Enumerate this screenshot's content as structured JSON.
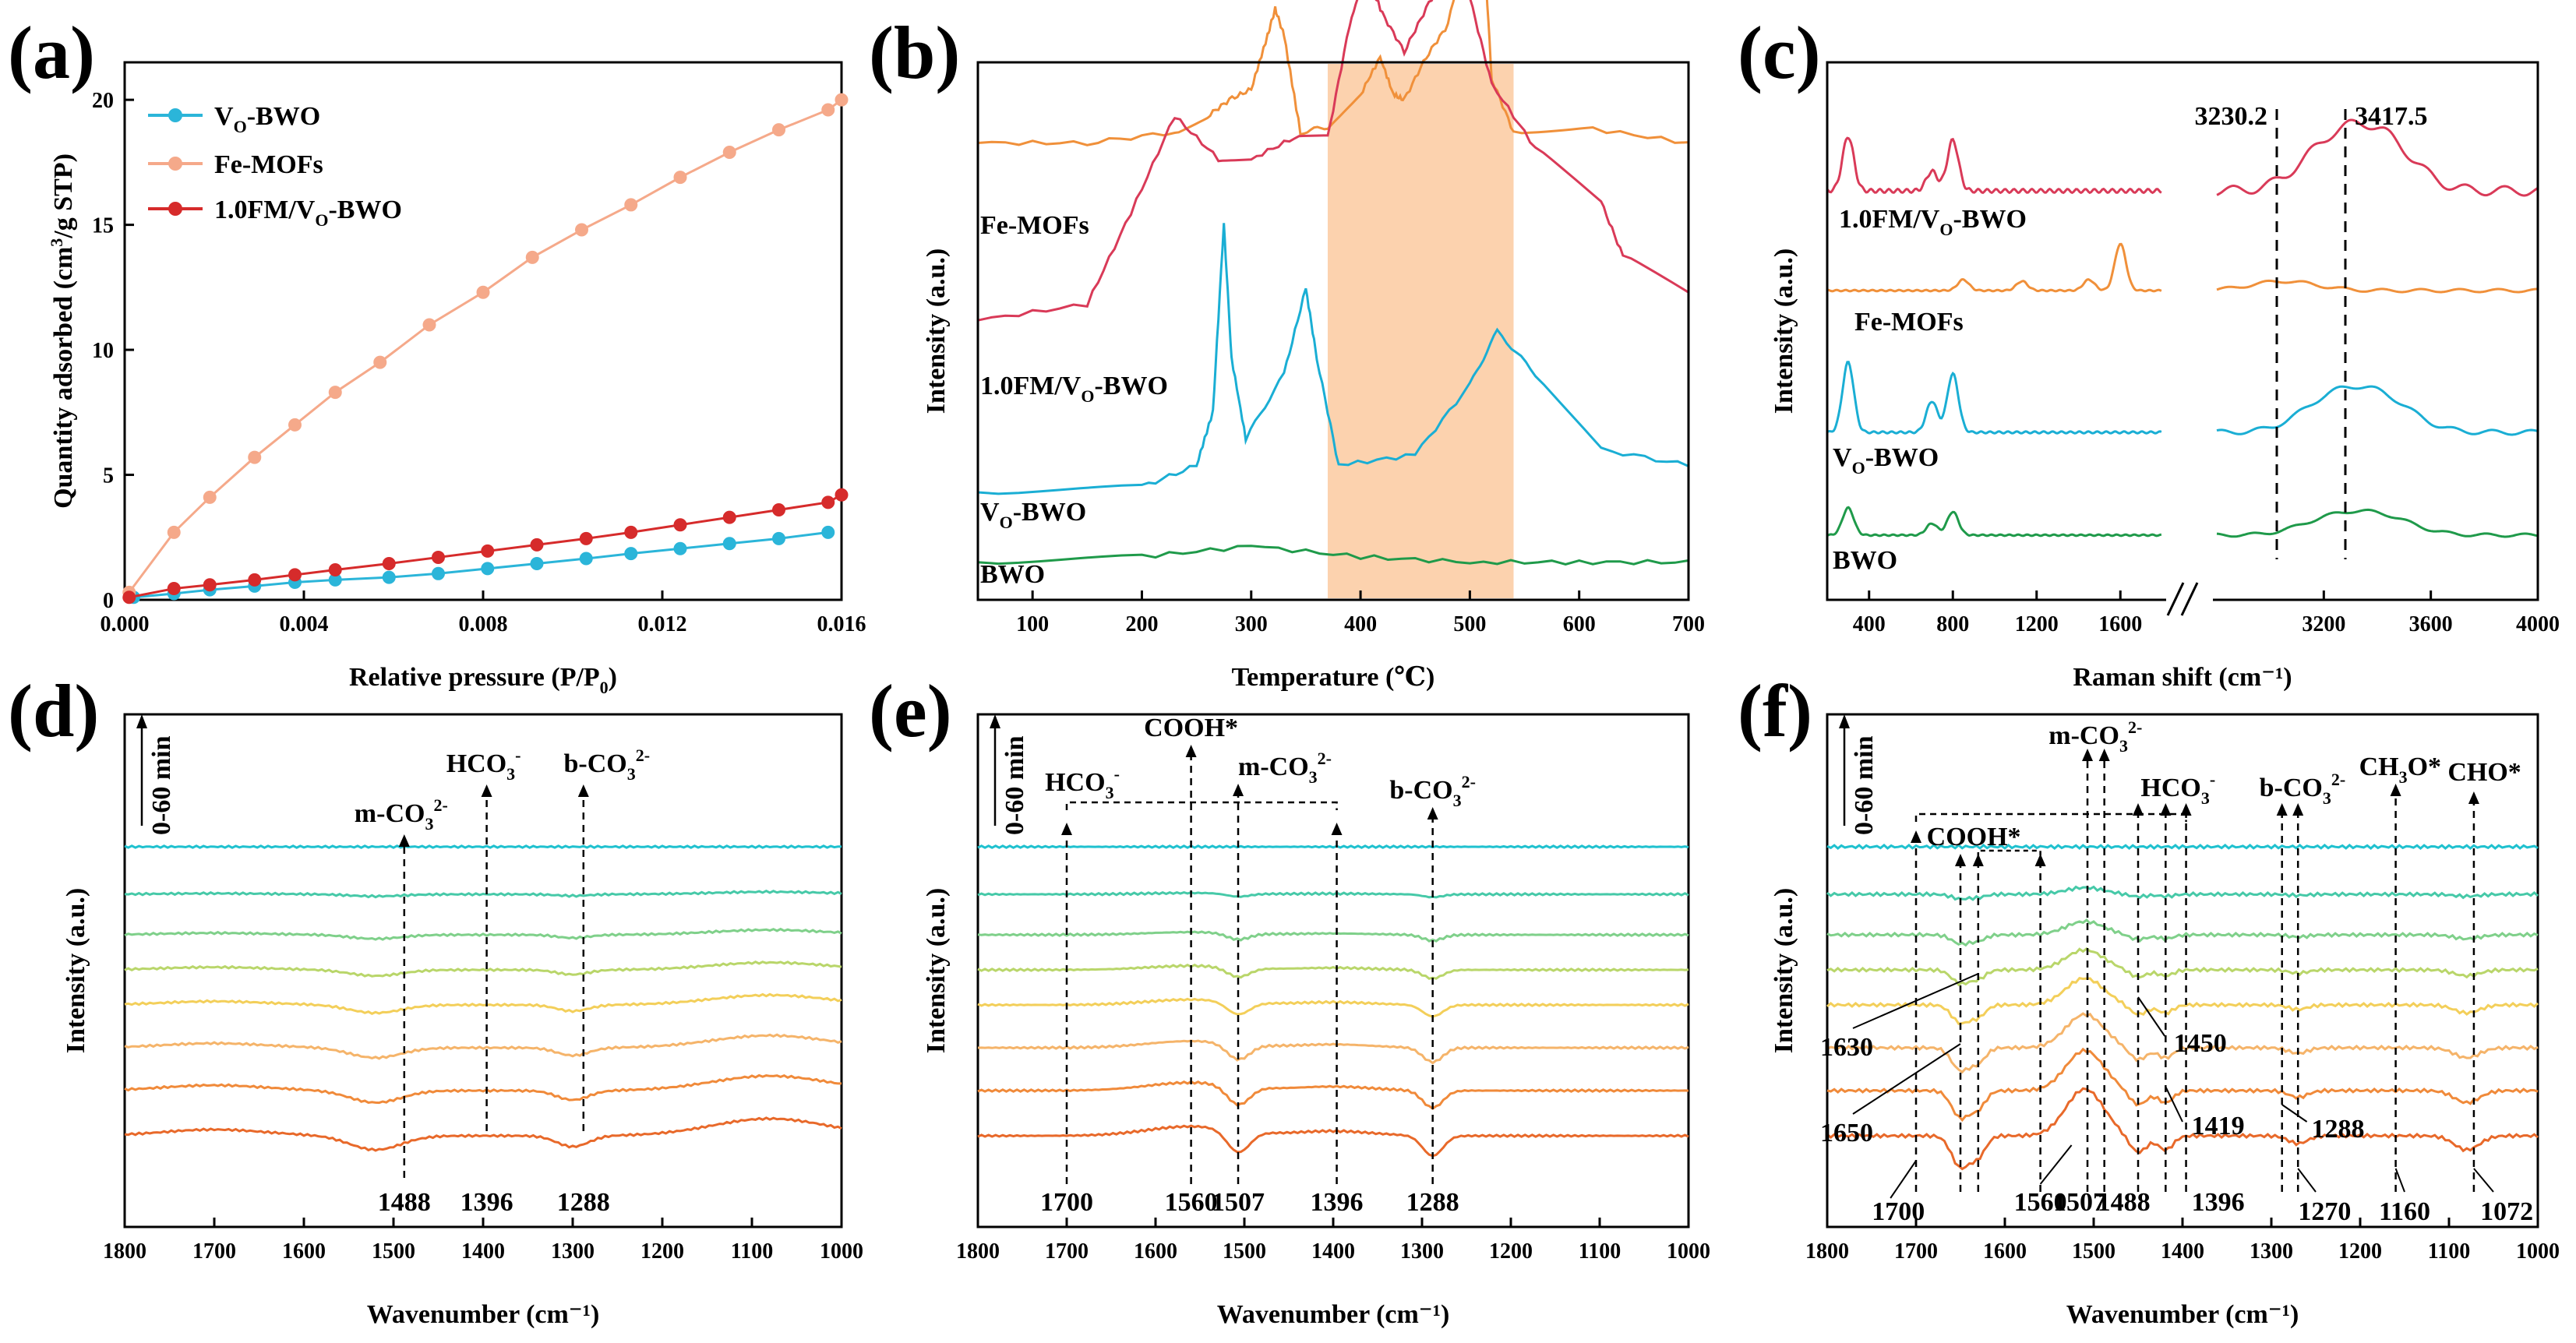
{
  "panels": [
    {
      "id": "a",
      "label": "(a)"
    },
    {
      "id": "b",
      "label": "(b)"
    },
    {
      "id": "c",
      "label": "(c)"
    },
    {
      "id": "d",
      "label": "(d)"
    },
    {
      "id": "e",
      "label": "(e)"
    },
    {
      "id": "f",
      "label": "(f)"
    }
  ],
  "chart_data": [
    {
      "panel": "a",
      "type": "line",
      "title": "",
      "xlabel": "Relative pressure (P/P0)",
      "ylabel": "Quantity adsorbed (cm3/g STP)",
      "xlim": [
        0.0,
        0.016
      ],
      "ylim": [
        0,
        21.5
      ],
      "xticks": [
        "0.000",
        "0.004",
        "0.008",
        "0.012",
        "0.016"
      ],
      "yticks": [
        "0",
        "5",
        "10",
        "15",
        "20"
      ],
      "legend_position": "top-left",
      "series": [
        {
          "name": "VO-BWO",
          "color": "#2bb5d9",
          "x": [
            0.0002,
            0.0011,
            0.0019,
            0.0029,
            0.0038,
            0.0047,
            0.0059,
            0.007,
            0.0081,
            0.0092,
            0.0103,
            0.0113,
            0.0124,
            0.0135,
            0.0146,
            0.0157
          ],
          "y": [
            0.1,
            0.25,
            0.4,
            0.55,
            0.7,
            0.8,
            0.9,
            1.05,
            1.25,
            1.45,
            1.65,
            1.85,
            2.05,
            2.25,
            2.45,
            2.7
          ]
        },
        {
          "name": "Fe-MOFs",
          "color": "#f5a98a",
          "x": [
            0.0001,
            0.0011,
            0.0019,
            0.0029,
            0.0038,
            0.0047,
            0.0057,
            0.0068,
            0.008,
            0.0091,
            0.0102,
            0.0113,
            0.0124,
            0.0135,
            0.0146,
            0.0157,
            0.016
          ],
          "y": [
            0.3,
            2.7,
            4.1,
            5.7,
            7.0,
            8.3,
            9.5,
            11.0,
            12.3,
            13.7,
            14.8,
            15.8,
            16.9,
            17.9,
            18.8,
            19.6,
            20.0
          ]
        },
        {
          "name": "1.0FM/VO-BWO",
          "color": "#d62b2b",
          "x": [
            0.0001,
            0.0011,
            0.0019,
            0.0029,
            0.0038,
            0.0047,
            0.0059,
            0.007,
            0.0081,
            0.0092,
            0.0103,
            0.0113,
            0.0124,
            0.0135,
            0.0146,
            0.0157,
            0.016
          ],
          "y": [
            0.1,
            0.45,
            0.6,
            0.8,
            1.0,
            1.2,
            1.45,
            1.7,
            1.95,
            2.2,
            2.45,
            2.7,
            3.0,
            3.3,
            3.6,
            3.9,
            4.2
          ]
        }
      ]
    },
    {
      "panel": "b",
      "type": "line",
      "xlabel": "Temperature (℃)",
      "ylabel": "Intensity (a.u.)",
      "xlim": [
        50,
        700
      ],
      "xticks": [
        "100",
        "200",
        "300",
        "400",
        "500",
        "600",
        "700"
      ],
      "highlight_range": [
        370,
        540
      ],
      "highlight_color": "#fcd2ae",
      "series": [
        {
          "name": "Fe-MOFs",
          "color": "#f0903a",
          "label": "Fe-MOFs",
          "baseline": 0.85,
          "x": [
            50,
            150,
            230,
            260,
            280,
            300,
            315,
            322,
            330,
            345,
            370,
            400,
            418,
            430,
            440,
            460,
            480,
            500,
            505,
            512,
            520,
            540,
            600,
            700
          ],
          "y": [
            0,
            0,
            0.02,
            0.05,
            0.08,
            0.1,
            0.2,
            0.25,
            0.2,
            0.02,
            0.03,
            0.09,
            0.16,
            0.09,
            0.08,
            0.16,
            0.22,
            0.4,
            0.47,
            0.4,
            0.12,
            0.02,
            0.03,
            0.0
          ]
        },
        {
          "name": "1.0FM/VO-BWO",
          "color": "#d93a58",
          "label": "1.0FM/VO-BWO",
          "baseline": 0.52,
          "x": [
            50,
            150,
            190,
            230,
            270,
            300,
            340,
            370,
            390,
            405,
            420,
            440,
            460,
            480,
            500,
            520,
            560,
            620,
            640,
            700
          ],
          "y": [
            0,
            0.03,
            0.2,
            0.38,
            0.3,
            0.3,
            0.34,
            0.34,
            0.55,
            0.65,
            0.57,
            0.5,
            0.58,
            0.65,
            0.6,
            0.44,
            0.32,
            0.22,
            0.12,
            0.05
          ]
        },
        {
          "name": "VO-BWO",
          "color": "#1aaed4",
          "label": "VO-BWO",
          "baseline": 0.2,
          "x": [
            50,
            200,
            250,
            265,
            275,
            282,
            295,
            330,
            350,
            360,
            380,
            450,
            500,
            525,
            560,
            620,
            700
          ],
          "y": [
            0,
            0.01,
            0.05,
            0.15,
            0.5,
            0.25,
            0.1,
            0.22,
            0.38,
            0.25,
            0.05,
            0.07,
            0.2,
            0.3,
            0.22,
            0.08,
            0.05
          ]
        },
        {
          "name": "BWO",
          "color": "#1f9a4a",
          "label": "BWO",
          "baseline": 0.07,
          "x": [
            50,
            200,
            300,
            400,
            500,
            600,
            700
          ],
          "y": [
            0,
            0.01,
            0.03,
            0.01,
            0.0,
            0.0,
            0.0
          ]
        }
      ]
    },
    {
      "panel": "c",
      "type": "line",
      "xlabel": "Raman shift (cm−1)",
      "ylabel": "Intensity (a.u.)",
      "xlim": [
        200,
        4000
      ],
      "axis_break": [
        1800,
        2800
      ],
      "xticks": [
        "400",
        "800",
        "1200",
        "1600",
        "3200",
        "3600",
        "4000"
      ],
      "reference_lines": [
        3230.2,
        3417.5
      ],
      "reference_labels": [
        "3230.2",
        "3417.5"
      ],
      "series": [
        {
          "name": "1.0FM/VO-BWO",
          "color": "#d93a58",
          "label": "1.0FM/VO-BWO"
        },
        {
          "name": "Fe-MOFs",
          "color": "#f0903a",
          "label": "Fe-MOFs"
        },
        {
          "name": "VO-BWO",
          "color": "#1aaed4",
          "label": "VO-BWO"
        },
        {
          "name": "BWO",
          "color": "#1f9a4a",
          "label": "BWO"
        }
      ]
    },
    {
      "panel": "d",
      "type": "line",
      "xlabel": "Wavenumber (cm−1)",
      "ylabel": "Intensity (a.u.)",
      "xlim": [
        1800,
        1000
      ],
      "xticks": [
        "1800",
        "1700",
        "1600",
        "1500",
        "1400",
        "1300",
        "1200",
        "1100",
        "1000"
      ],
      "time_arrow": "0-60 min",
      "peak_labels": [
        {
          "label": "m-CO32-",
          "wn": 1488,
          "value_label": "1488"
        },
        {
          "label": "HCO3-",
          "wn": 1396,
          "value_label": "1396"
        },
        {
          "label": "b-CO32-",
          "wn": 1288,
          "value_label": "1288"
        }
      ]
    },
    {
      "panel": "e",
      "type": "line",
      "xlabel": "Wavenumber (cm−1)",
      "ylabel": "Intensity (a.u.)",
      "xlim": [
        1800,
        1000
      ],
      "xticks": [
        "1800",
        "1700",
        "1600",
        "1500",
        "1400",
        "1300",
        "1200",
        "1100",
        "1000"
      ],
      "time_arrow": "0-60 min",
      "peak_labels": [
        {
          "label": "HCO3-",
          "wn": 1700,
          "value_label": "1700"
        },
        {
          "label": "COOH*",
          "wn": 1560,
          "value_label": "1560"
        },
        {
          "label": "m-CO32-",
          "wn": 1507,
          "value_label": "1507"
        },
        {
          "label": "",
          "wn": 1396,
          "value_label": "1396"
        },
        {
          "label": "b-CO32-",
          "wn": 1288,
          "value_label": "1288"
        }
      ]
    },
    {
      "panel": "f",
      "type": "line",
      "xlabel": "Wavenumber (cm−1)",
      "ylabel": "Intensity (a.u.)",
      "xlim": [
        1800,
        1000
      ],
      "xticks": [
        "1800",
        "1700",
        "1600",
        "1500",
        "1400",
        "1300",
        "1200",
        "1100",
        "1000"
      ],
      "time_arrow": "0-60 min",
      "group_labels": [
        "COOH*",
        "m-CO32-",
        "HCO3-",
        "b-CO32-",
        "CH3O*",
        "CHO*"
      ],
      "peak_values": [
        "1700",
        "1650",
        "1630",
        "1560",
        "1507",
        "1488",
        "1450",
        "1419",
        "1396",
        "1288",
        "1270",
        "1160",
        "1072"
      ]
    }
  ],
  "text": {
    "a": {
      "legend": [
        "V",
        "O",
        "-BWO",
        "Fe-MOFs",
        "1.0FM/V",
        "O",
        "-BWO"
      ],
      "ylabel_main": "Quantity adsorbed (cm",
      "ylabel_sup": "3",
      "ylabel_tail": "/g STP)",
      "xlabel_main": "Relative pressure (P/P",
      "xlabel_sub": "0",
      "xlabel_tail": ")"
    },
    "b": {
      "xlabel": "Temperature (℃)",
      "ylabel": "Intensity (a.u.)",
      "labels": [
        "Fe-MOFs",
        "1.0FM/V",
        "O",
        "-BWO",
        "V",
        "O",
        "-BWO",
        "BWO"
      ]
    },
    "c": {
      "xlabel": "Raman shift (cm⁻¹)",
      "ylabel": "Intensity (a.u.)",
      "labels": [
        "1.0FM/V",
        "O",
        "-BWO",
        "Fe-MOFs",
        "V",
        "O",
        "-BWO",
        "BWO"
      ],
      "refs": [
        "3230.2",
        "3417.5"
      ]
    },
    "def": {
      "xlabel": "Wavenumber (cm⁻¹)",
      "ylabel": "Intensity (a.u.)",
      "time": "0-60 min"
    }
  },
  "colors": {
    "traces": [
      "#e8692a",
      "#f08a3a",
      "#f5b46a",
      "#f3cf5a",
      "#b9d66a",
      "#7fd08a",
      "#46c9a8",
      "#1fc1cf"
    ]
  }
}
